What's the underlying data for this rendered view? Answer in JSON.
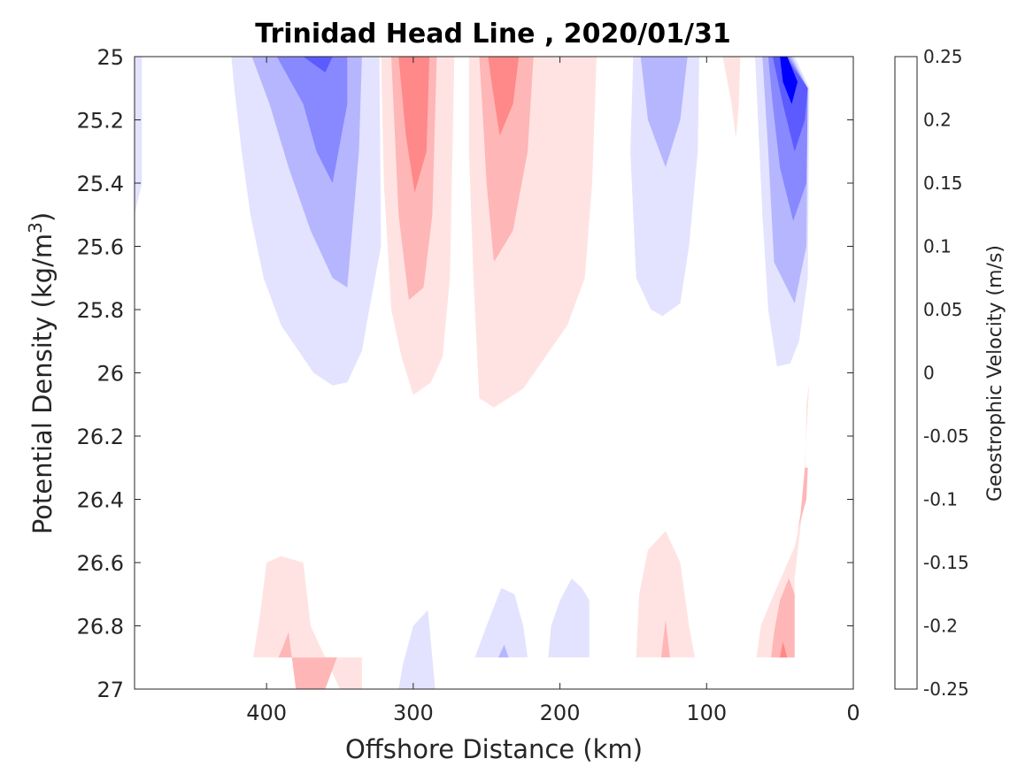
{
  "chart_data": {
    "type": "contour",
    "title": "Trinidad Head Line , 2020/01/31",
    "xlabel": "Offshore Distance (km)",
    "ylabel_main": "Potential Density (kg/m",
    "ylabel_sup": "3",
    "ylabel_close": ")",
    "colorbar_label": "Geostrophic Velocity (m/s)",
    "xlim": [
      490,
      0
    ],
    "ylim": [
      25,
      27
    ],
    "x_ticks": [
      400,
      300,
      200,
      100,
      0
    ],
    "x_tick_labels": [
      "400",
      "300",
      "200",
      "100",
      "0"
    ],
    "y_ticks": [
      25,
      25.2,
      25.4,
      25.6,
      25.8,
      26,
      26.2,
      26.4,
      26.6,
      26.8,
      27
    ],
    "y_tick_labels": [
      "25",
      "25.2",
      "25.4",
      "25.6",
      "25.8",
      "26",
      "26.2",
      "26.4",
      "26.6",
      "26.8",
      "27"
    ],
    "colorbar_range": [
      -0.25,
      0.25
    ],
    "colorbar_ticks": [
      0.25,
      0.2,
      0.15,
      0.1,
      0.05,
      0,
      -0.05,
      -0.1,
      -0.15,
      -0.2,
      -0.25
    ],
    "colorbar_tick_labels": [
      "0.25",
      "0.2",
      "0.15",
      "0.1",
      "0.05",
      "0",
      "-0.05",
      "-0.1",
      "-0.15",
      "-0.2",
      "-0.25"
    ],
    "colorbar_levels": [
      {
        "range": [
          0.225,
          0.25
        ],
        "color": "#ff0000"
      },
      {
        "range": [
          0.175,
          0.225
        ],
        "color": "#ff2d2d"
      },
      {
        "range": [
          0.125,
          0.175
        ],
        "color": "#ff5b5b"
      },
      {
        "range": [
          0.075,
          0.125
        ],
        "color": "#ff8888"
      },
      {
        "range": [
          0.025,
          0.075
        ],
        "color": "#ffb6b6"
      },
      {
        "range": [
          0.005,
          0.025
        ],
        "color": "#ffe3e3"
      },
      {
        "range": [
          -0.005,
          0.005
        ],
        "color": "#ffffff"
      },
      {
        "range": [
          -0.025,
          -0.005
        ],
        "color": "#ffffff"
      },
      {
        "range": [
          -0.075,
          -0.025
        ],
        "color": "#e3e3ff"
      },
      {
        "range": [
          -0.125,
          -0.075
        ],
        "color": "#b6b6ff"
      },
      {
        "range": [
          -0.175,
          -0.125
        ],
        "color": "#8888ff"
      },
      {
        "range": [
          -0.225,
          -0.175
        ],
        "color": "#5b5bff"
      },
      {
        "range": [
          -0.25,
          -0.225
        ],
        "color": "#0000ff"
      }
    ],
    "contour_regions": [
      {
        "level": -0.05,
        "color": "#e3e3ff",
        "points": [
          [
            490,
            25
          ],
          [
            485,
            25
          ],
          [
            485,
            25.4
          ],
          [
            490,
            25.5
          ]
        ]
      },
      {
        "level": -0.05,
        "color": "#e3e3ff",
        "points": [
          [
            424,
            25
          ],
          [
            323,
            25
          ],
          [
            322,
            25.6
          ],
          [
            330,
            25.8
          ],
          [
            335,
            25.93
          ],
          [
            345,
            26.03
          ],
          [
            355,
            26.04
          ],
          [
            368,
            26.0
          ],
          [
            390,
            25.85
          ],
          [
            402,
            25.7
          ],
          [
            411,
            25.5
          ],
          [
            417,
            25.3
          ],
          [
            422,
            25.1
          ]
        ]
      },
      {
        "level": -0.1,
        "color": "#b6b6ff",
        "points": [
          [
            410,
            25
          ],
          [
            335,
            25
          ],
          [
            337,
            25.3
          ],
          [
            345,
            25.73
          ],
          [
            355,
            25.7
          ],
          [
            370,
            25.55
          ],
          [
            385,
            25.35
          ],
          [
            398,
            25.15
          ]
        ]
      },
      {
        "level": -0.15,
        "color": "#8888ff",
        "points": [
          [
            393,
            25
          ],
          [
            345,
            25
          ],
          [
            345,
            25.15
          ],
          [
            355,
            25.4
          ],
          [
            366,
            25.3
          ],
          [
            375,
            25.15
          ],
          [
            387,
            25.05
          ]
        ]
      },
      {
        "level": -0.2,
        "color": "#5b5bff",
        "points": [
          [
            375,
            25
          ],
          [
            355,
            25
          ],
          [
            360,
            25.05
          ],
          [
            366,
            25.03
          ]
        ]
      },
      {
        "level": -0.05,
        "color": "#e3e3ff",
        "points": [
          [
            150,
            25
          ],
          [
            105,
            25
          ],
          [
            106,
            25.3
          ],
          [
            112,
            25.6
          ],
          [
            118,
            25.78
          ],
          [
            130,
            25.82
          ],
          [
            138,
            25.8
          ],
          [
            148,
            25.7
          ],
          [
            152,
            25.3
          ]
        ]
      },
      {
        "level": -0.1,
        "color": "#b6b6ff",
        "points": [
          [
            145,
            25
          ],
          [
            113,
            25
          ],
          [
            118,
            25.2
          ],
          [
            128,
            25.35
          ],
          [
            140,
            25.2
          ]
        ]
      },
      {
        "level": -0.05,
        "color": "#e3e3ff",
        "points": [
          [
            67,
            25
          ],
          [
            40,
            25
          ],
          [
            30,
            25.1
          ],
          [
            31,
            25.7
          ],
          [
            37,
            25.9
          ],
          [
            43,
            25.97
          ],
          [
            52,
            25.98
          ],
          [
            58,
            25.8
          ],
          [
            62,
            25.5
          ],
          [
            65,
            25.2
          ]
        ]
      },
      {
        "level": -0.1,
        "color": "#b6b6ff",
        "points": [
          [
            62,
            25
          ],
          [
            42,
            25
          ],
          [
            31,
            25.1
          ],
          [
            32,
            25.6
          ],
          [
            40,
            25.78
          ],
          [
            54,
            25.65
          ],
          [
            58,
            25.3
          ]
        ]
      },
      {
        "level": -0.15,
        "color": "#8888ff",
        "points": [
          [
            58,
            25
          ],
          [
            44,
            25
          ],
          [
            31,
            25.1
          ],
          [
            32,
            25.4
          ],
          [
            41,
            25.52
          ],
          [
            50,
            25.35
          ],
          [
            55,
            25.15
          ]
        ]
      },
      {
        "level": -0.2,
        "color": "#5b5bff",
        "points": [
          [
            55,
            25
          ],
          [
            46,
            25
          ],
          [
            31,
            25.1
          ],
          [
            33,
            25.2
          ],
          [
            40,
            25.3
          ],
          [
            48,
            25.15
          ]
        ]
      },
      {
        "level": -0.25,
        "color": "#0000ff",
        "points": [
          [
            50,
            25
          ],
          [
            45,
            25
          ],
          [
            38,
            25.08
          ],
          [
            42,
            25.15
          ],
          [
            48,
            25.08
          ]
        ]
      },
      {
        "level": 0.05,
        "color": "#ffe3e3",
        "points": [
          [
            322,
            25
          ],
          [
            272,
            25
          ],
          [
            275,
            25.7
          ],
          [
            280,
            25.95
          ],
          [
            288,
            26.03
          ],
          [
            300,
            26.07
          ],
          [
            308,
            25.95
          ],
          [
            315,
            25.8
          ],
          [
            320,
            25.4
          ]
        ]
      },
      {
        "level": 0.1,
        "color": "#ffb6b6",
        "points": [
          [
            315,
            25
          ],
          [
            284,
            25
          ],
          [
            287,
            25.5
          ],
          [
            293,
            25.73
          ],
          [
            303,
            25.77
          ],
          [
            310,
            25.5
          ],
          [
            313,
            25.2
          ]
        ]
      },
      {
        "level": 0.15,
        "color": "#ff8888",
        "points": [
          [
            310,
            25
          ],
          [
            289,
            25
          ],
          [
            291,
            25.3
          ],
          [
            299,
            25.43
          ],
          [
            305,
            25.25
          ]
        ]
      },
      {
        "level": 0.05,
        "color": "#ffe3e3",
        "points": [
          [
            262,
            25
          ],
          [
            175,
            25
          ],
          [
            178,
            25.4
          ],
          [
            183,
            25.7
          ],
          [
            195,
            25.85
          ],
          [
            210,
            25.95
          ],
          [
            225,
            26.05
          ],
          [
            245,
            26.11
          ],
          [
            255,
            26.08
          ],
          [
            259,
            25.7
          ],
          [
            262,
            25.3
          ]
        ]
      },
      {
        "level": 0.1,
        "color": "#ffb6b6",
        "points": [
          [
            255,
            25
          ],
          [
            218,
            25
          ],
          [
            222,
            25.3
          ],
          [
            232,
            25.55
          ],
          [
            245,
            25.65
          ],
          [
            250,
            25.4
          ],
          [
            253,
            25.15
          ]
        ]
      },
      {
        "level": 0.15,
        "color": "#ff8888",
        "points": [
          [
            249,
            25
          ],
          [
            228,
            25
          ],
          [
            232,
            25.15
          ],
          [
            241,
            25.25
          ],
          [
            246,
            25.1
          ]
        ]
      },
      {
        "level": 0.05,
        "color": "#ffe3e3",
        "points": [
          [
            200,
            25
          ],
          [
            182,
            25
          ],
          [
            186,
            25.08
          ],
          [
            191,
            25.06
          ]
        ]
      },
      {
        "level": 0.05,
        "color": "#ffe3e3",
        "points": [
          [
            89,
            25
          ],
          [
            77,
            25
          ],
          [
            78,
            25.15
          ],
          [
            80,
            25.26
          ],
          [
            83,
            25.15
          ]
        ]
      },
      {
        "level": 0.05,
        "color": "#ffe3e3",
        "points": [
          [
            409,
            26.9
          ],
          [
            335,
            26.9
          ],
          [
            335,
            27
          ],
          [
            350,
            27
          ],
          [
            370,
            26.8
          ],
          [
            375,
            26.6
          ],
          [
            390,
            26.58
          ],
          [
            400,
            26.6
          ],
          [
            404,
            26.75
          ]
        ]
      },
      {
        "level": 0.1,
        "color": "#ffb6b6",
        "points": [
          [
            392,
            26.9
          ],
          [
            352,
            26.9
          ],
          [
            360,
            27
          ],
          [
            380,
            27
          ],
          [
            385,
            26.82
          ],
          [
            390,
            26.88
          ]
        ]
      },
      {
        "level": 0.05,
        "color": "#ffe3e3",
        "points": [
          [
            148,
            26.9
          ],
          [
            108,
            26.9
          ],
          [
            112,
            26.8
          ],
          [
            118,
            26.6
          ],
          [
            128,
            26.5
          ],
          [
            140,
            26.56
          ],
          [
            146,
            26.7
          ]
        ]
      },
      {
        "level": 0.1,
        "color": "#ffb6b6",
        "points": [
          [
            131,
            26.9
          ],
          [
            125,
            26.9
          ],
          [
            128,
            26.78
          ]
        ]
      },
      {
        "level": 0.05,
        "color": "#ffe3e3",
        "points": [
          [
            66,
            26.9
          ],
          [
            40,
            26.9
          ],
          [
            40,
            26.65
          ],
          [
            35,
            26.45
          ],
          [
            30,
            26.03
          ],
          [
            32,
            26.1
          ],
          [
            33,
            26.4
          ],
          [
            40,
            26.55
          ],
          [
            56,
            26.72
          ],
          [
            63,
            26.8
          ]
        ]
      },
      {
        "level": 0.1,
        "color": "#ffb6b6",
        "points": [
          [
            56,
            26.9
          ],
          [
            40,
            26.9
          ],
          [
            40,
            26.7
          ],
          [
            44,
            26.65
          ],
          [
            50,
            26.72
          ],
          [
            54,
            26.82
          ]
        ]
      },
      {
        "level": 0.15,
        "color": "#ff8888",
        "points": [
          [
            50,
            26.9
          ],
          [
            45,
            26.9
          ],
          [
            48,
            26.85
          ]
        ]
      },
      {
        "level": 0.1,
        "color": "#ffb6b6",
        "points": [
          [
            38,
            26.5
          ],
          [
            32,
            26.4
          ],
          [
            31,
            26.3
          ],
          [
            33,
            26.3
          ],
          [
            36,
            26.45
          ]
        ]
      },
      {
        "level": -0.05,
        "color": "#e3e3ff",
        "points": [
          [
            310,
            27
          ],
          [
            285,
            27
          ],
          [
            290,
            26.75
          ],
          [
            300,
            26.8
          ],
          [
            307,
            26.92
          ]
        ]
      },
      {
        "level": -0.05,
        "color": "#e3e3ff",
        "points": [
          [
            258,
            26.9
          ],
          [
            222,
            26.9
          ],
          [
            225,
            26.8
          ],
          [
            231,
            26.7
          ],
          [
            240,
            26.68
          ],
          [
            250,
            26.8
          ]
        ]
      },
      {
        "level": -0.1,
        "color": "#b6b6ff",
        "points": [
          [
            242,
            26.9
          ],
          [
            235,
            26.9
          ],
          [
            238,
            26.86
          ]
        ]
      },
      {
        "level": -0.05,
        "color": "#e3e3ff",
        "points": [
          [
            208,
            26.9
          ],
          [
            180,
            26.9
          ],
          [
            180,
            26.72
          ],
          [
            185,
            26.68
          ],
          [
            192,
            26.65
          ],
          [
            200,
            26.72
          ],
          [
            206,
            26.8
          ]
        ]
      }
    ]
  }
}
